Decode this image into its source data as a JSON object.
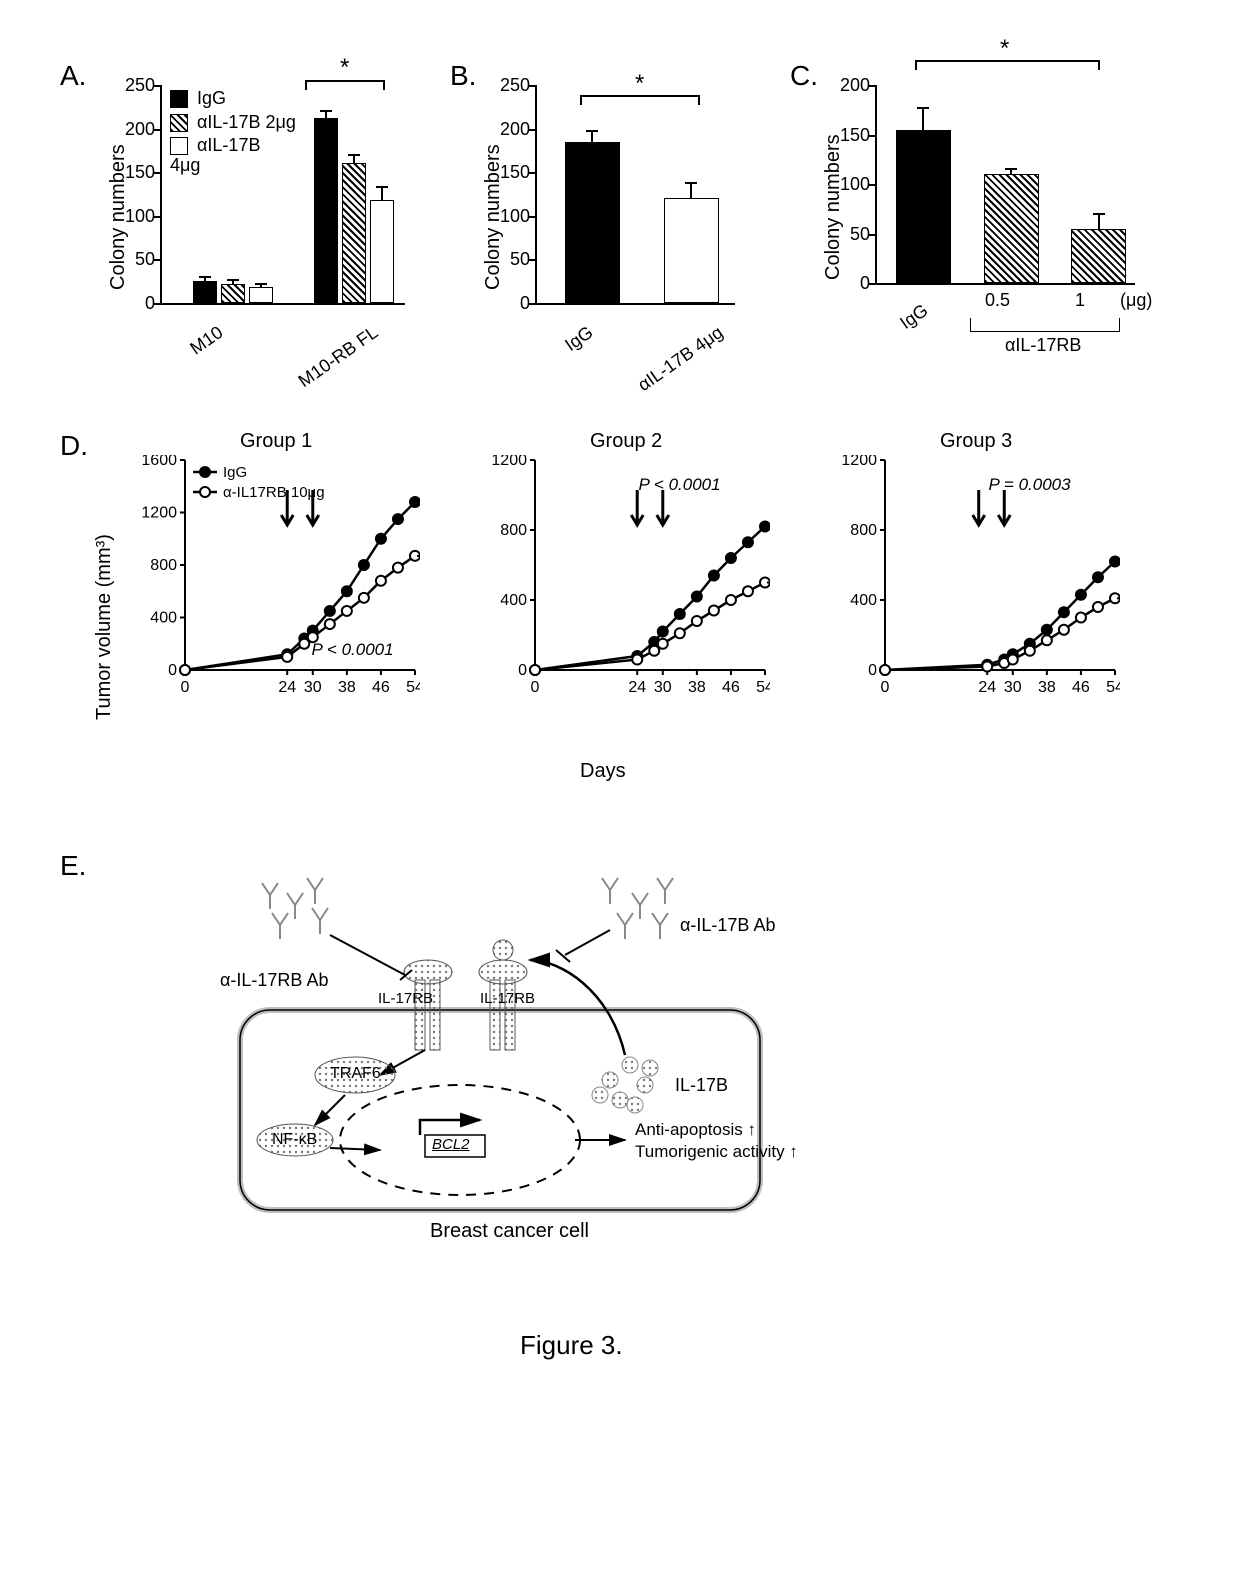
{
  "figure_caption": "Figure 3.",
  "colors": {
    "bg": "#ffffff",
    "fg": "#000000",
    "hatch_fg": "#000000",
    "hatch_bg": "#ffffff"
  },
  "panelA": {
    "label": "A.",
    "type": "bar",
    "ylabel": "Colony numbers",
    "ylim": [
      0,
      250
    ],
    "ytick_step": 50,
    "groups": [
      "M10",
      "M10-RB FL"
    ],
    "series": [
      {
        "name": "IgG",
        "fill": "solid"
      },
      {
        "name": "αIL-17B 2μg",
        "fill": "hatch"
      },
      {
        "name": "αIL-17B 4μg",
        "fill": "hollow"
      }
    ],
    "values": [
      [
        25,
        22,
        18
      ],
      [
        212,
        160,
        118
      ]
    ],
    "errors": [
      [
        5,
        4,
        4
      ],
      [
        8,
        10,
        15
      ]
    ],
    "sig": {
      "text": "*"
    }
  },
  "panelB": {
    "label": "B.",
    "type": "bar",
    "ylabel": "Colony numbers",
    "ylim": [
      0,
      250
    ],
    "ytick_step": 50,
    "categories": [
      "IgG",
      "αIL-17B 4μg"
    ],
    "fills": [
      "solid",
      "hollow"
    ],
    "values": [
      185,
      120
    ],
    "errors": [
      12,
      18
    ],
    "sig": {
      "text": "*"
    }
  },
  "panelC": {
    "label": "C.",
    "type": "bar",
    "ylabel": "Colony numbers",
    "ylim": [
      0,
      200
    ],
    "ytick_step": 50,
    "categories": [
      "IgG",
      "0.5",
      "1"
    ],
    "group_label": "αIL-17RB",
    "unit_label": "(μg)",
    "fills": [
      "solid",
      "hatch",
      "hatch"
    ],
    "values": [
      155,
      110,
      55
    ],
    "errors": [
      22,
      5,
      15
    ],
    "sig": {
      "text": "*"
    }
  },
  "panelD": {
    "label": "D.",
    "type": "line",
    "ylabel": "Tumor volume (mm³)",
    "xlabel": "Days",
    "legend": [
      {
        "name": "IgG",
        "marker": "filled"
      },
      {
        "name": "α-IL17RB 10μg",
        "marker": "open"
      }
    ],
    "x": [
      0,
      24,
      28,
      30,
      34,
      38,
      42,
      46,
      50,
      54
    ],
    "xticks": [
      0,
      24,
      30,
      38,
      46,
      54
    ],
    "groups": [
      {
        "title": "Group 1",
        "ylim": [
          0,
          1600
        ],
        "ytick_step": 400,
        "p_text": "P < 0.0001",
        "IgG": [
          0,
          120,
          240,
          300,
          450,
          600,
          800,
          1000,
          1150,
          1280
        ],
        "treat": [
          0,
          100,
          200,
          250,
          350,
          450,
          550,
          680,
          780,
          870
        ],
        "arrows_x": [
          24,
          30
        ]
      },
      {
        "title": "Group 2",
        "ylim": [
          0,
          1200
        ],
        "ytick_step": 400,
        "p_text": "P < 0.0001",
        "IgG": [
          0,
          80,
          160,
          220,
          320,
          420,
          540,
          640,
          730,
          820
        ],
        "treat": [
          0,
          60,
          110,
          150,
          210,
          280,
          340,
          400,
          450,
          500
        ],
        "arrows_x": [
          24,
          30
        ]
      },
      {
        "title": "Group 3",
        "ylim": [
          0,
          1200
        ],
        "ytick_step": 400,
        "p_text": "P = 0.0003",
        "IgG": [
          0,
          30,
          60,
          90,
          150,
          230,
          330,
          430,
          530,
          620
        ],
        "treat": [
          0,
          20,
          40,
          60,
          110,
          170,
          230,
          300,
          360,
          410
        ],
        "arrows_x": [
          22,
          28
        ]
      }
    ]
  },
  "panelE": {
    "label": "E.",
    "type": "diagram",
    "labels": {
      "ab_rb": "α-IL-17RB Ab",
      "ab_b": "α-IL-17B Ab",
      "rb1": "IL-17RB",
      "rb2": "IL-17RB",
      "traf6": "TRAF6",
      "nfkb": "NF-κB",
      "bcl2": "BCL2",
      "il17b": "IL-17B",
      "out1": "Anti-apoptosis ↑",
      "out2": "Tumorigenic activity ↑",
      "cell": "Breast cancer cell"
    }
  }
}
